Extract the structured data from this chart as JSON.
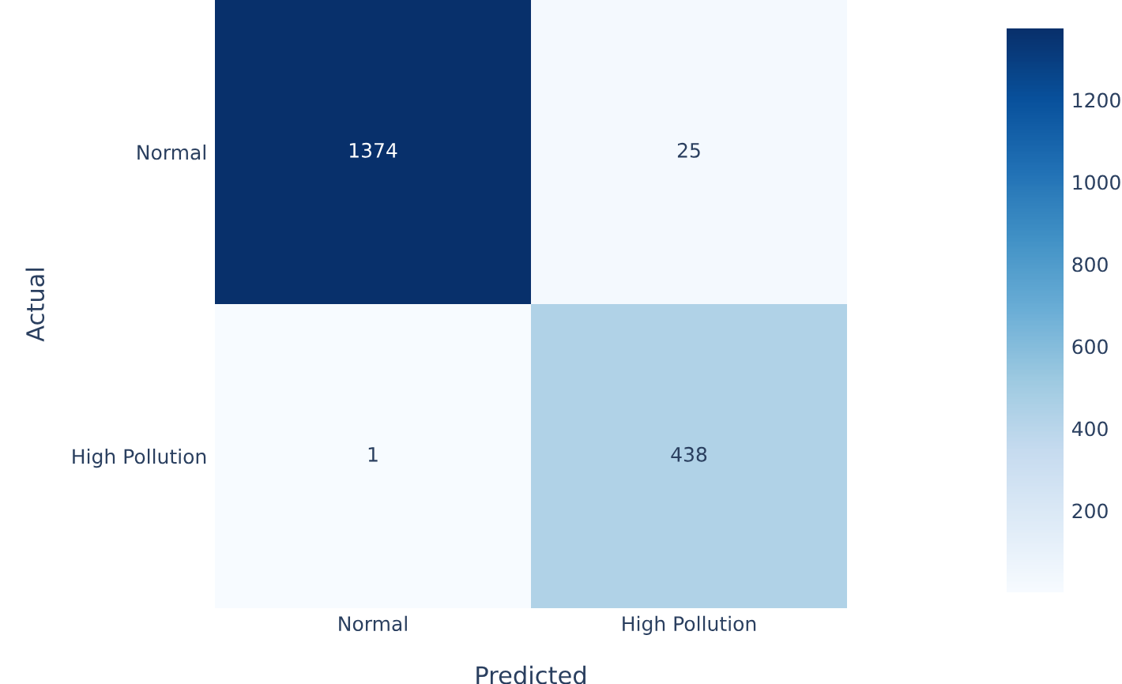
{
  "chart_data": {
    "type": "heatmap",
    "xlabel": "Predicted",
    "ylabel": "Actual",
    "categories": [
      "Normal",
      "High Pollution"
    ],
    "y_categories": [
      "Normal",
      "High Pollution"
    ],
    "cells": [
      [
        1374,
        25
      ],
      [
        1,
        438
      ]
    ],
    "data_labels": true,
    "clim": [
      1,
      1374
    ],
    "cticks": [
      200,
      400,
      600,
      800,
      1000,
      1200
    ]
  }
}
